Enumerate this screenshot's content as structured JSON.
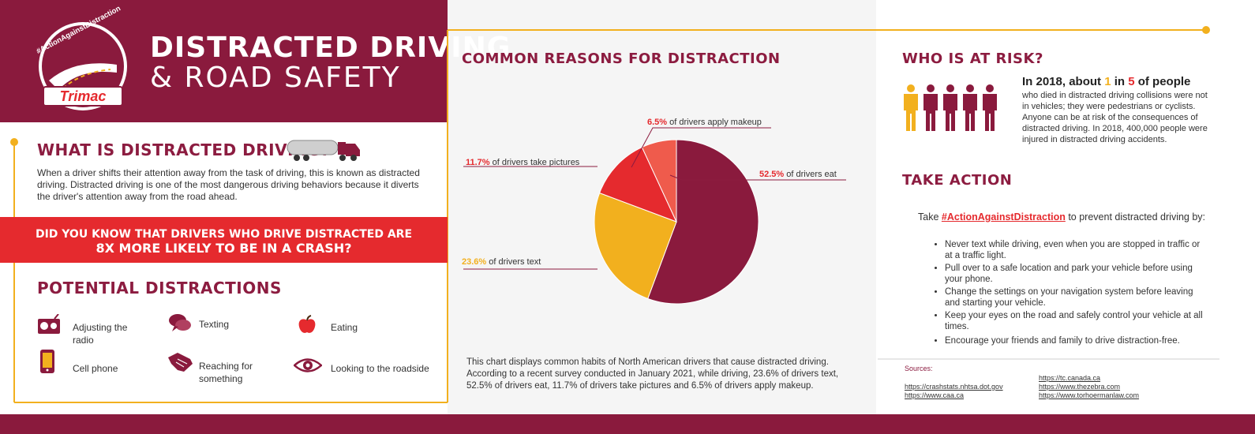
{
  "header": {
    "logo_hashtag": "#ActionAgainstDistraction",
    "logo_brand": "Trimac",
    "title_line1": "DISTRACTED DRIVING",
    "title_line2": "& ROAD SAFETY"
  },
  "what_is": {
    "heading": "WHAT IS DISTRACTED DRIVING?",
    "body": "When a driver shifts their attention away from the task of driving, this is known as distracted driving. Distracted driving is one of the most dangerous driving behaviors because it diverts the driver's attention away from the road ahead."
  },
  "banner": {
    "line1": "DID YOU KNOW THAT DRIVERS WHO DRIVE DISTRACTED ARE",
    "line2": "8X MORE LIKELY TO BE IN A CRASH?"
  },
  "potential": {
    "heading": "POTENTIAL DISTRACTIONS",
    "items": [
      {
        "label": "Adjusting the radio",
        "icon": "radio-icon"
      },
      {
        "label": "Texting",
        "icon": "speech-bubbles-icon"
      },
      {
        "label": "Eating",
        "icon": "apple-icon"
      },
      {
        "label": "Cell phone",
        "icon": "phone-icon"
      },
      {
        "label": "Reaching for something",
        "icon": "hand-icon"
      },
      {
        "label": "Looking to the roadside",
        "icon": "eye-icon"
      }
    ]
  },
  "chart_data": {
    "type": "pie",
    "title": "COMMON REASONS FOR DISTRACTION",
    "series": [
      {
        "pct": "52.5%",
        "value": 52.5,
        "text": "of drivers eat",
        "color": "#8a1a3d"
      },
      {
        "pct": "23.6%",
        "value": 23.6,
        "text": "of drivers text",
        "color": "#f2b01e"
      },
      {
        "pct": "11.7%",
        "value": 11.7,
        "text": "of drivers take pictures",
        "color": "#e52a2e"
      },
      {
        "pct": "6.5%",
        "value": 6.5,
        "text": "of drivers apply makeup",
        "color": "#ef5b4c"
      }
    ],
    "caption": "This chart displays common habits of North American drivers that cause distracted driving. According to a recent  survey conducted in January 2021, while driving, 23.6% of drivers text, 52.5% of drivers eat, 11.7% of drivers take pictures and 6.5% of drivers apply makeup."
  },
  "risk": {
    "heading": "WHO IS AT RISK?",
    "stat_pre": "In 2018, about ",
    "stat_num1": "1",
    "stat_mid": " in ",
    "stat_num2": "5",
    "stat_post": " of people",
    "body": "who died in distracted driving collisions were not in vehicles; they were pedestrians or cyclists. Anyone can be at risk of the consequences of distracted driving. In 2018, 400,000 people were injured in distracted driving accidents.",
    "people_total": 5,
    "people_highlighted": 1
  },
  "action": {
    "heading": "TAKE ACTION",
    "intro_pre": "Take ",
    "intro_tag": "#ActionAgainstDistraction",
    "intro_post": " to prevent distracted driving by:",
    "bullets": [
      "Never text while driving, even when you are stopped in traffic or at a traffic light.",
      "Pull over to a safe location and park your vehicle before using your phone.",
      "Change the settings on your navigation system before leaving and starting your vehicle.",
      "Keep your eyes on the road and safely control your vehicle at all times.",
      "Encourage your friends and family to drive distraction-free."
    ]
  },
  "sources": {
    "label": "Sources:",
    "links": [
      "https://crashstats.nhtsa.dot.gov",
      "https://www.caa.ca",
      "https://tc.canada.ca",
      "https://www.thezebra.com",
      "https://www.torhoermanlaw.com"
    ]
  },
  "colors": {
    "maroon": "#8a1a3d",
    "red": "#e52a2e",
    "gold": "#f2b01e",
    "salmon": "#ef5b4c"
  }
}
